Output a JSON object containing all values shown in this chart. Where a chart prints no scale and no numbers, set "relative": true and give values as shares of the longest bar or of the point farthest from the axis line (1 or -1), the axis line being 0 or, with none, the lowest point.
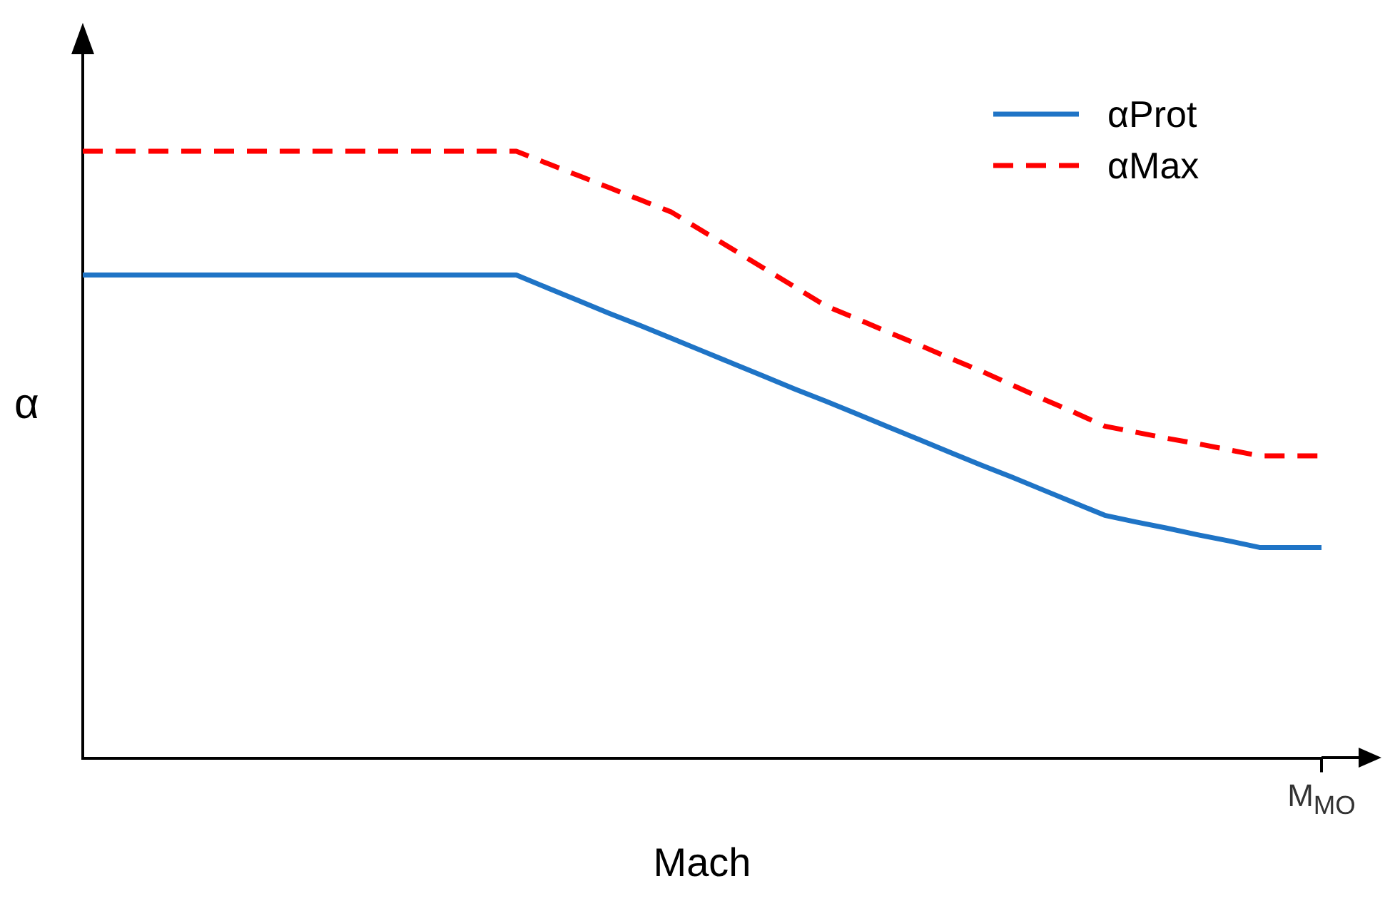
{
  "chart_data": {
    "type": "line",
    "xlabel": "Mach",
    "ylabel": "α",
    "relative": true,
    "categories": [
      null,
      null,
      null,
      null,
      null,
      null,
      null,
      null,
      null,
      null,
      null,
      null,
      null,
      null,
      null,
      null,
      null,
      null,
      null,
      null,
      null,
      null,
      null,
      null,
      null,
      null,
      null,
      null,
      null,
      null,
      null,
      null,
      null,
      null,
      null,
      null,
      null,
      null,
      null,
      null,
      null
    ],
    "annotations": [
      "M$_{MO}$"
    ],
    "series": [
      {
        "name": "αProt",
        "color": "#1f74c6",
        "line_style": "solid",
        "values": [
          0.796,
          0.796,
          0.796,
          0.796,
          0.796,
          0.796,
          0.796,
          0.796,
          0.796,
          0.796,
          0.796,
          0.796,
          0.796,
          0.796,
          0.796,
          0.775,
          0.754,
          0.733,
          0.713,
          0.692,
          0.671,
          0.65,
          0.629,
          0.608,
          0.588,
          0.567,
          0.546,
          0.525,
          0.504,
          0.483,
          0.463,
          0.442,
          0.421,
          0.4,
          0.389,
          0.379,
          0.368,
          0.358,
          0.347,
          0.347,
          0.347
        ]
      },
      {
        "name": "αMax",
        "color": "#ff0000",
        "line_style": "dashed",
        "values": [
          1,
          1,
          1,
          1,
          1,
          1,
          1,
          1,
          1,
          1,
          1,
          1,
          1,
          1,
          1,
          0.98,
          0.96,
          0.94,
          0.92,
          0.9,
          0.869,
          0.838,
          0.807,
          0.776,
          0.745,
          0.724,
          0.702,
          0.681,
          0.659,
          0.638,
          0.615,
          0.592,
          0.57,
          0.547,
          0.537,
          0.527,
          0.518,
          0.508,
          0.498,
          0.498,
          0.498
        ]
      }
    ],
    "marker": "none",
    "grid": false,
    "legend": "top right",
    "tick_labels": "x"
  }
}
